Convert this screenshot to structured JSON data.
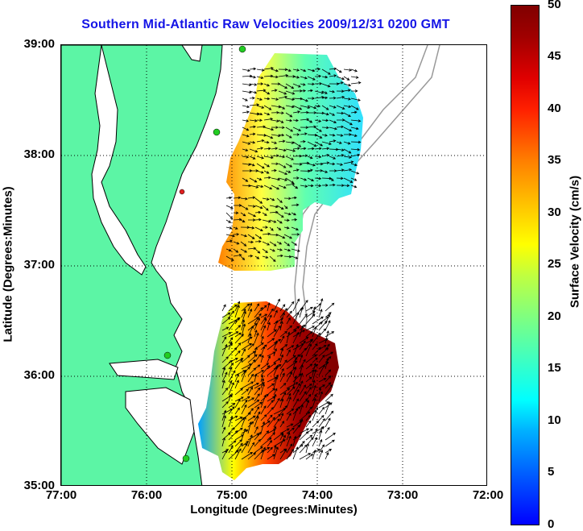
{
  "title": "Southern Mid-Atlantic Raw Velocities 2009/12/31 0200 GMT",
  "xlabel": "Longitude (Degrees:Minutes)",
  "ylabel": "Latitude (Degrees:Minutes)",
  "x_ticks": [
    "77:00",
    "76:00",
    "75:00",
    "74:00",
    "73:00",
    "72:00"
  ],
  "y_ticks": [
    "39:00",
    "38:00",
    "37:00",
    "36:00",
    "35:00"
  ],
  "colorbar": {
    "label": "Surface Velocity (cm/s)",
    "ticks": [
      "0",
      "5",
      "10",
      "15",
      "20",
      "25",
      "30",
      "35",
      "40",
      "45",
      "50"
    ],
    "range": [
      0,
      50
    ]
  },
  "colors": {
    "land": "#5cf5a5",
    "coast": "#000000",
    "title": "#1414e6",
    "grid": "#000000",
    "station": "#22cc22"
  },
  "map_extent": {
    "lon": [
      -77,
      -72
    ],
    "lat": [
      35,
      39
    ]
  }
}
